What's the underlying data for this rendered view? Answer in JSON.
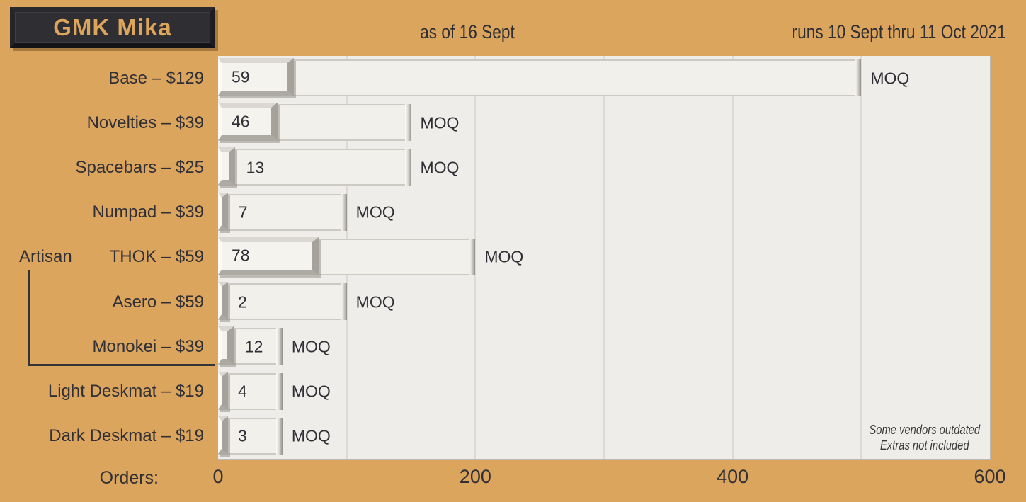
{
  "header": {
    "title": "GMK Mika",
    "as_of": "as of 16 Sept",
    "runs": "runs 10 Sept thru 11 Oct 2021"
  },
  "axis": {
    "label": "Orders:",
    "ticks": [
      0,
      200,
      400,
      600
    ]
  },
  "moq_marker": "MOQ",
  "note": {
    "line1": "Some vendors outdated",
    "line2": "Extras not included"
  },
  "colors": {
    "background": "#dca55e",
    "plot_background": "#efede9",
    "keycap_face": "#f5f3ee",
    "text": "#303036",
    "title_keycap": "#2e2e33",
    "title_text": "#dda45c"
  },
  "chart_data": {
    "type": "bar",
    "orientation": "horizontal",
    "title": "GMK Mika",
    "subtitle": "as of 16 Sept",
    "annotation": "runs 10 Sept thru 11 Oct 2021",
    "categories": [
      "Base – $129",
      "Novelties – $39",
      "Spacebars – $25",
      "Numpad – $39",
      "THOK – $59",
      "Asero – $59",
      "Monokei – $39",
      "Light Deskmat – $19",
      "Dark Deskmat – $19"
    ],
    "group": {
      "label": "Artisan",
      "row_indices": [
        4,
        5,
        6
      ]
    },
    "series": [
      {
        "name": "Orders",
        "values": [
          59,
          46,
          13,
          7,
          78,
          2,
          12,
          4,
          3
        ]
      },
      {
        "name": "MOQ",
        "values": [
          500,
          150,
          150,
          100,
          200,
          100,
          50,
          50,
          50
        ]
      }
    ],
    "xlabel": "Orders",
    "xlim": [
      0,
      600
    ],
    "grid_every": 100,
    "legend": "none",
    "notes": [
      "Some vendors outdated",
      "Extras not included"
    ]
  }
}
